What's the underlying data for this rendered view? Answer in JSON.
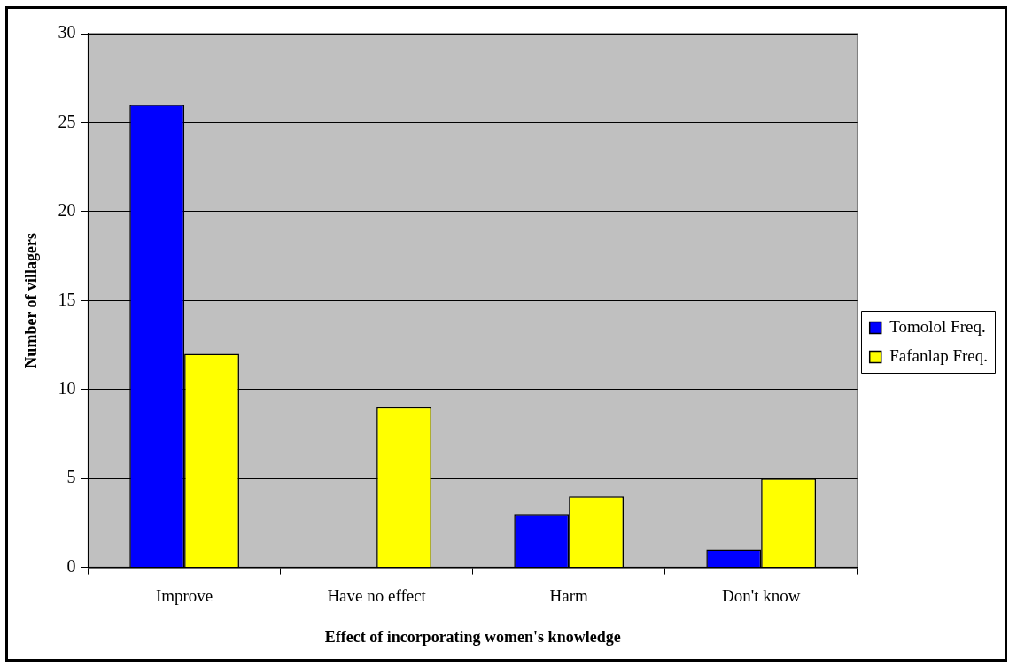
{
  "chart_data": {
    "type": "bar",
    "xlabel": "Effect of incorporating women's knowledge",
    "ylabel": "Number of villagers",
    "categories": [
      "Improve",
      "Have no effect",
      "Harm",
      "Don't know"
    ],
    "series": [
      {
        "name": "Tomolol Freq.",
        "color": "#0000ff",
        "values": [
          26,
          0,
          3,
          1
        ]
      },
      {
        "name": "Fafanlap Freq.",
        "color": "#ffff00",
        "values": [
          12,
          9,
          4,
          5
        ]
      }
    ],
    "ylim": [
      0,
      30
    ],
    "yticks": [
      0,
      5,
      10,
      15,
      20,
      25,
      30
    ],
    "grid": "y",
    "legend": "right"
  }
}
